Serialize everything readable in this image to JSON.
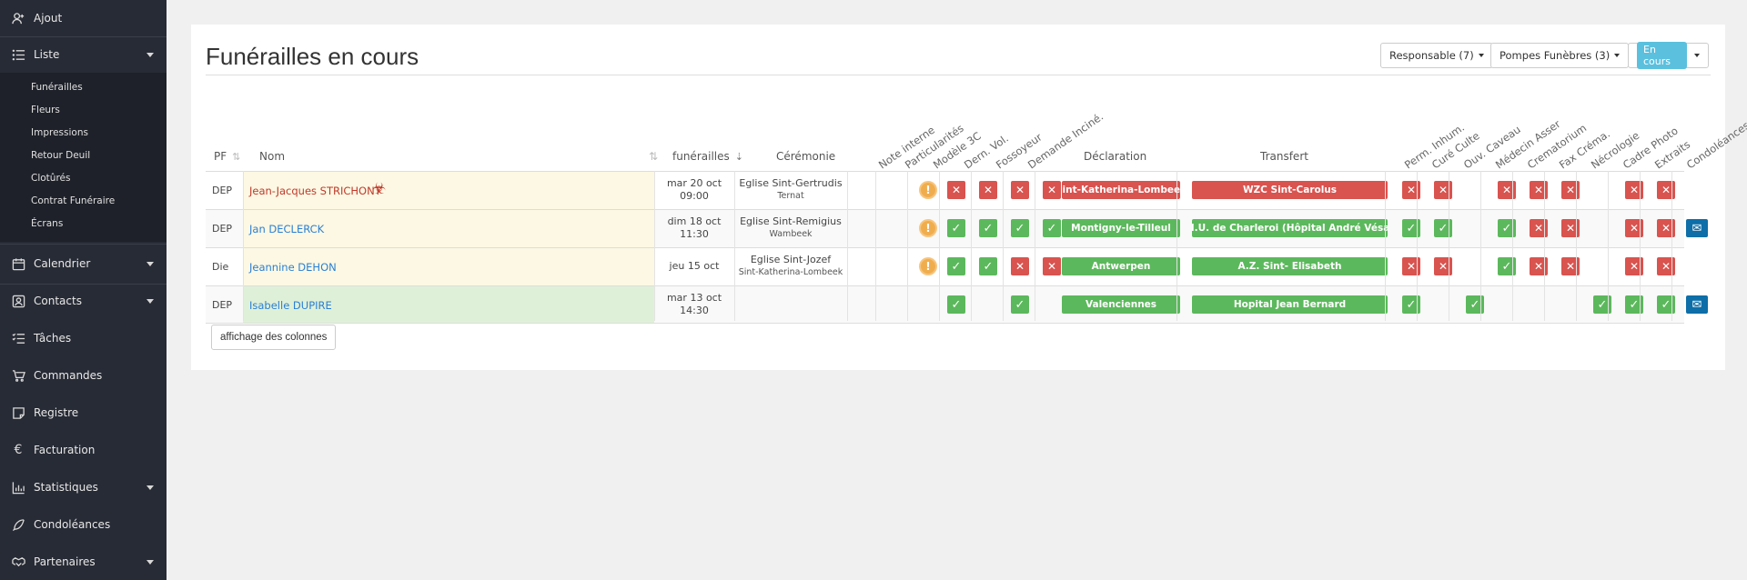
{
  "sidebar": {
    "ajout": "Ajout",
    "liste": "Liste",
    "sub_items": [
      "Funérailles",
      "Fleurs",
      "Impressions",
      "Retour Deuil",
      "Clotûrés",
      "Contrat Funéraire",
      "Écrans"
    ],
    "calendrier": "Calendrier",
    "contacts": "Contacts",
    "taches": "Tâches",
    "commandes": "Commandes",
    "registre": "Registre",
    "facturation": "Facturation",
    "statistiques": "Statistiques",
    "condoleances": "Condoléances",
    "partenaires": "Partenaires"
  },
  "page": {
    "title": "Funérailles en cours",
    "filters": {
      "responsable": "Responsable (7)",
      "pompes": "Pompes Funèbres (3)",
      "en_cours": "En cours"
    },
    "columns_button": "affichage des colonnes"
  },
  "table": {
    "headers": {
      "pf": "PF",
      "nom": "Nom",
      "funerailles": "funérailles",
      "ceremonie": "Cérémonie",
      "declaration": "Déclaration",
      "transfert": "Transfert"
    },
    "rotated_headers": [
      "Note interne",
      "Particularités",
      "Modèle 3C",
      "Dern. Vol.",
      "Fossoyeur",
      "Demande Inciné.",
      "Perm. Inhum.",
      "Curé Culte",
      "Ouv. Caveau",
      "Médecin Asser",
      "Crematorium",
      "Fax Créma.",
      "Nécrologie",
      "Cadre Photo",
      "Extraits",
      "Condoléances"
    ],
    "rows": [
      {
        "pf": "DEP",
        "nom": "Jean-Jacques STRICHONT",
        "date_line1": "mar 20 oct",
        "date_line2": "09:00",
        "ceremonie": "Eglise Sint-Gertrudis",
        "ceremonie_lieu": "Ternat",
        "declaration": "Sint-Katherina-Lombeek",
        "transfert": "WZC Sint-Carolus"
      },
      {
        "pf": "DEP",
        "nom": "Jan DECLERCK",
        "date_line1": "dim 18 oct",
        "date_line2": "11:30",
        "ceremonie": "Eglise Sint-Remigius",
        "ceremonie_lieu": "Wambeek",
        "declaration": "Montigny-le-Tilleul",
        "transfert": "C.H.U. de Charleroi (Hôpital André Vésale)"
      },
      {
        "pf": "Die",
        "nom": "Jeannine DEHON",
        "date_line1": "jeu 15 oct",
        "date_line2": "",
        "ceremonie": "Eglise Sint-Jozef",
        "ceremonie_lieu": "Sint-Katherina-Lombeek",
        "declaration": "Antwerpen",
        "transfert": "A.Z. Sint- Elisabeth"
      },
      {
        "pf": "DEP",
        "nom": "Isabelle DUPIRE",
        "date_line1": "mar 13 oct",
        "date_line2": "14:30",
        "ceremonie": "",
        "ceremonie_lieu": "",
        "declaration": "Valenciennes",
        "transfert": "Hopital Jean Bernard"
      }
    ]
  },
  "colors": {
    "ok": "#5cb85c",
    "no": "#d9534f",
    "warning": "#f0ad4e",
    "info": "#5bc0de",
    "sidebar": "#272b35"
  }
}
